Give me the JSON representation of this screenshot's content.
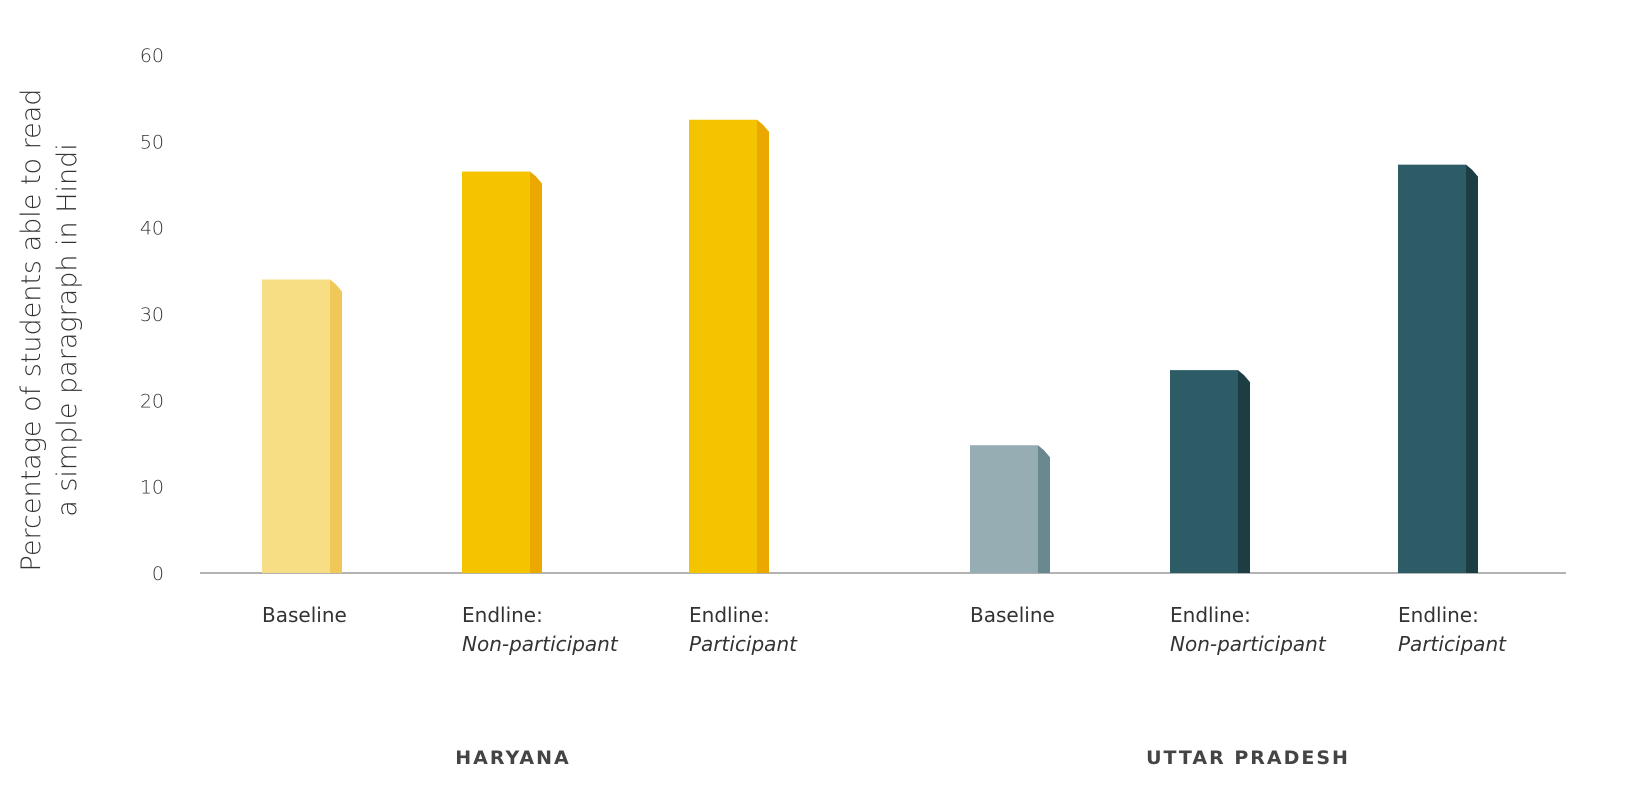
{
  "chart_data": {
    "type": "bar",
    "ylabel_lines": [
      "Percentage of students able to read",
      "a simple paragraph in Hindi"
    ],
    "ylim": [
      0,
      60
    ],
    "yticks": [
      0,
      10,
      20,
      30,
      40,
      50,
      60
    ],
    "grid": false,
    "groups": [
      {
        "name": "HARYANA",
        "bars": [
          {
            "line1": "Baseline",
            "line2": "",
            "value": 34,
            "color": "#f7de84",
            "side": "#f0c85a"
          },
          {
            "line1": "Endline:",
            "line2": "Non-participant",
            "value": 46.5,
            "color": "#f5c400",
            "side": "#eaa800"
          },
          {
            "line1": "Endline:",
            "line2": "Participant",
            "value": 52.5,
            "color": "#f5c400",
            "side": "#eaa800"
          }
        ]
      },
      {
        "name": "UTTAR PRADESH",
        "bars": [
          {
            "line1": "Baseline",
            "line2": "",
            "value": 14.8,
            "color": "#97adb4",
            "side": "#6a8890"
          },
          {
            "line1": "Endline:",
            "line2": "Non-participant",
            "value": 23.5,
            "color": "#2d5c66",
            "side": "#1d3d45"
          },
          {
            "line1": "Endline:",
            "line2": "Participant",
            "value": 47.3,
            "color": "#2d5c66",
            "side": "#1d3d45"
          }
        ]
      }
    ]
  }
}
